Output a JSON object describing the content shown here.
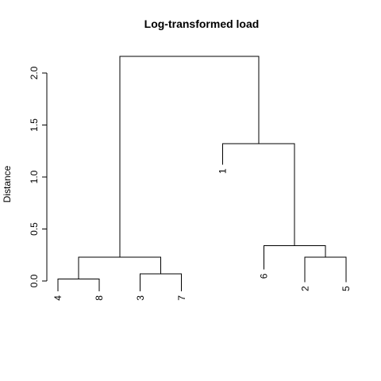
{
  "chart_data": {
    "type": "dendrogram",
    "title": "Log-transformed load",
    "xlabel": "",
    "ylabel": "Distance",
    "ylim": [
      0,
      2.2
    ],
    "yticks": [
      0.0,
      0.5,
      1.0,
      1.5,
      2.0
    ],
    "ytick_labels": [
      "0.0",
      "0.5",
      "1.0",
      "1.5",
      "2.0"
    ],
    "leaf_order": [
      "4",
      "8",
      "3",
      "7",
      "1",
      "6",
      "2",
      "5"
    ],
    "leaf_tip_heights": [
      -0.1,
      -0.1,
      -0.1,
      -0.1,
      1.12,
      0.11,
      -0.01,
      -0.01
    ],
    "merges": [
      {
        "left": "4",
        "right": "8",
        "height": 0.02
      },
      {
        "left": "3",
        "right": "7",
        "height": 0.07
      },
      {
        "left": "2",
        "right": "5",
        "height": 0.23
      },
      {
        "left": "6",
        "right": "2,5",
        "height": 0.34
      },
      {
        "left": "4,8",
        "right": "3,7",
        "height": 0.23
      },
      {
        "left": "1",
        "right": "6,2,5",
        "height": 1.32
      },
      {
        "left": "4,8,3,7",
        "right": "1,6,2,5",
        "height": 2.16
      }
    ],
    "grid": false,
    "legend": "none"
  }
}
